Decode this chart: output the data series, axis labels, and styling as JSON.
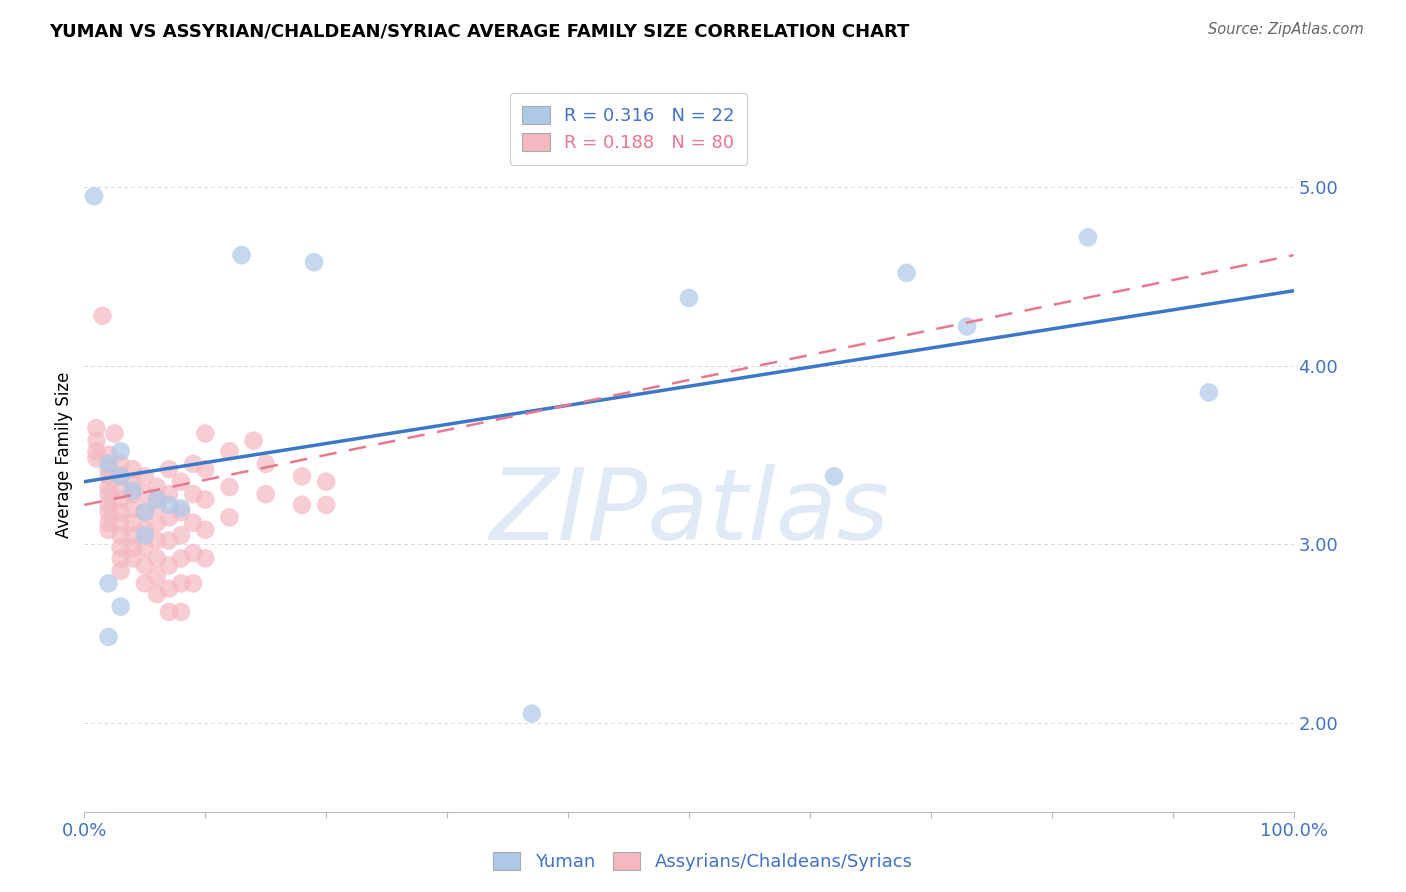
{
  "title": "YUMAN VS ASSYRIAN/CHALDEAN/SYRIAC AVERAGE FAMILY SIZE CORRELATION CHART",
  "source": "Source: ZipAtlas.com",
  "ylabel": "Average Family Size",
  "xlim": [
    0,
    1.0
  ],
  "ylim": [
    1.5,
    5.5
  ],
  "yticks": [
    2.0,
    3.0,
    4.0,
    5.0
  ],
  "xticks": [
    0.0,
    0.1,
    0.2,
    0.3,
    0.4,
    0.5,
    0.6,
    0.7,
    0.8,
    0.9,
    1.0
  ],
  "xtick_labels": [
    "0.0%",
    "",
    "",
    "",
    "",
    "",
    "",
    "",
    "",
    "",
    "100.0%"
  ],
  "R_blue": "0.316",
  "N_blue": "22",
  "R_pink": "0.188",
  "N_pink": "80",
  "blue_color": "#aec8e8",
  "pink_color": "#f4b8c1",
  "blue_line_color": "#3c78c8",
  "pink_line_color": "#e87890",
  "blue_text_color": "#4472C4",
  "watermark": "ZIPatlas",
  "blue_points": [
    [
      0.008,
      4.95
    ],
    [
      0.13,
      4.62
    ],
    [
      0.19,
      4.58
    ],
    [
      0.5,
      4.38
    ],
    [
      0.68,
      4.52
    ],
    [
      0.83,
      4.72
    ],
    [
      0.73,
      4.22
    ],
    [
      0.62,
      3.38
    ],
    [
      0.93,
      3.85
    ],
    [
      0.06,
      3.25
    ],
    [
      0.07,
      3.22
    ],
    [
      0.37,
      2.05
    ],
    [
      0.02,
      3.45
    ],
    [
      0.03,
      3.52
    ],
    [
      0.03,
      3.38
    ],
    [
      0.04,
      3.3
    ],
    [
      0.05,
      3.18
    ],
    [
      0.05,
      3.05
    ],
    [
      0.08,
      3.2
    ],
    [
      0.02,
      2.78
    ],
    [
      0.03,
      2.65
    ],
    [
      0.02,
      2.48
    ]
  ],
  "pink_points": [
    [
      0.01,
      3.65
    ],
    [
      0.01,
      3.58
    ],
    [
      0.01,
      3.52
    ],
    [
      0.01,
      3.48
    ],
    [
      0.015,
      4.28
    ],
    [
      0.02,
      3.5
    ],
    [
      0.02,
      3.42
    ],
    [
      0.02,
      3.38
    ],
    [
      0.02,
      3.32
    ],
    [
      0.02,
      3.28
    ],
    [
      0.02,
      3.22
    ],
    [
      0.02,
      3.18
    ],
    [
      0.02,
      3.12
    ],
    [
      0.02,
      3.08
    ],
    [
      0.025,
      3.62
    ],
    [
      0.03,
      3.45
    ],
    [
      0.03,
      3.38
    ],
    [
      0.03,
      3.3
    ],
    [
      0.03,
      3.25
    ],
    [
      0.03,
      3.18
    ],
    [
      0.03,
      3.12
    ],
    [
      0.03,
      3.05
    ],
    [
      0.03,
      2.98
    ],
    [
      0.03,
      2.92
    ],
    [
      0.03,
      2.85
    ],
    [
      0.04,
      3.42
    ],
    [
      0.04,
      3.35
    ],
    [
      0.04,
      3.28
    ],
    [
      0.04,
      3.2
    ],
    [
      0.04,
      3.12
    ],
    [
      0.04,
      3.05
    ],
    [
      0.04,
      2.98
    ],
    [
      0.04,
      2.92
    ],
    [
      0.05,
      3.38
    ],
    [
      0.05,
      3.28
    ],
    [
      0.05,
      3.18
    ],
    [
      0.05,
      3.08
    ],
    [
      0.05,
      2.98
    ],
    [
      0.05,
      2.88
    ],
    [
      0.05,
      2.78
    ],
    [
      0.06,
      3.32
    ],
    [
      0.06,
      3.22
    ],
    [
      0.06,
      3.12
    ],
    [
      0.06,
      3.02
    ],
    [
      0.06,
      2.92
    ],
    [
      0.06,
      2.82
    ],
    [
      0.06,
      2.72
    ],
    [
      0.07,
      3.42
    ],
    [
      0.07,
      3.28
    ],
    [
      0.07,
      3.15
    ],
    [
      0.07,
      3.02
    ],
    [
      0.07,
      2.88
    ],
    [
      0.07,
      2.75
    ],
    [
      0.07,
      2.62
    ],
    [
      0.08,
      3.35
    ],
    [
      0.08,
      3.18
    ],
    [
      0.08,
      3.05
    ],
    [
      0.08,
      2.92
    ],
    [
      0.08,
      2.78
    ],
    [
      0.08,
      2.62
    ],
    [
      0.09,
      3.45
    ],
    [
      0.09,
      3.28
    ],
    [
      0.09,
      3.12
    ],
    [
      0.09,
      2.95
    ],
    [
      0.09,
      2.78
    ],
    [
      0.1,
      3.62
    ],
    [
      0.1,
      3.42
    ],
    [
      0.1,
      3.25
    ],
    [
      0.1,
      3.08
    ],
    [
      0.1,
      2.92
    ],
    [
      0.12,
      3.52
    ],
    [
      0.12,
      3.32
    ],
    [
      0.12,
      3.15
    ],
    [
      0.14,
      3.58
    ],
    [
      0.15,
      3.45
    ],
    [
      0.15,
      3.28
    ],
    [
      0.18,
      3.38
    ],
    [
      0.18,
      3.22
    ],
    [
      0.2,
      3.35
    ],
    [
      0.2,
      3.22
    ]
  ],
  "blue_trendline_x": [
    0.0,
    1.0
  ],
  "blue_trendline_y": [
    3.35,
    4.42
  ],
  "pink_trendline_x": [
    0.0,
    1.0
  ],
  "pink_trendline_y": [
    3.22,
    4.62
  ]
}
